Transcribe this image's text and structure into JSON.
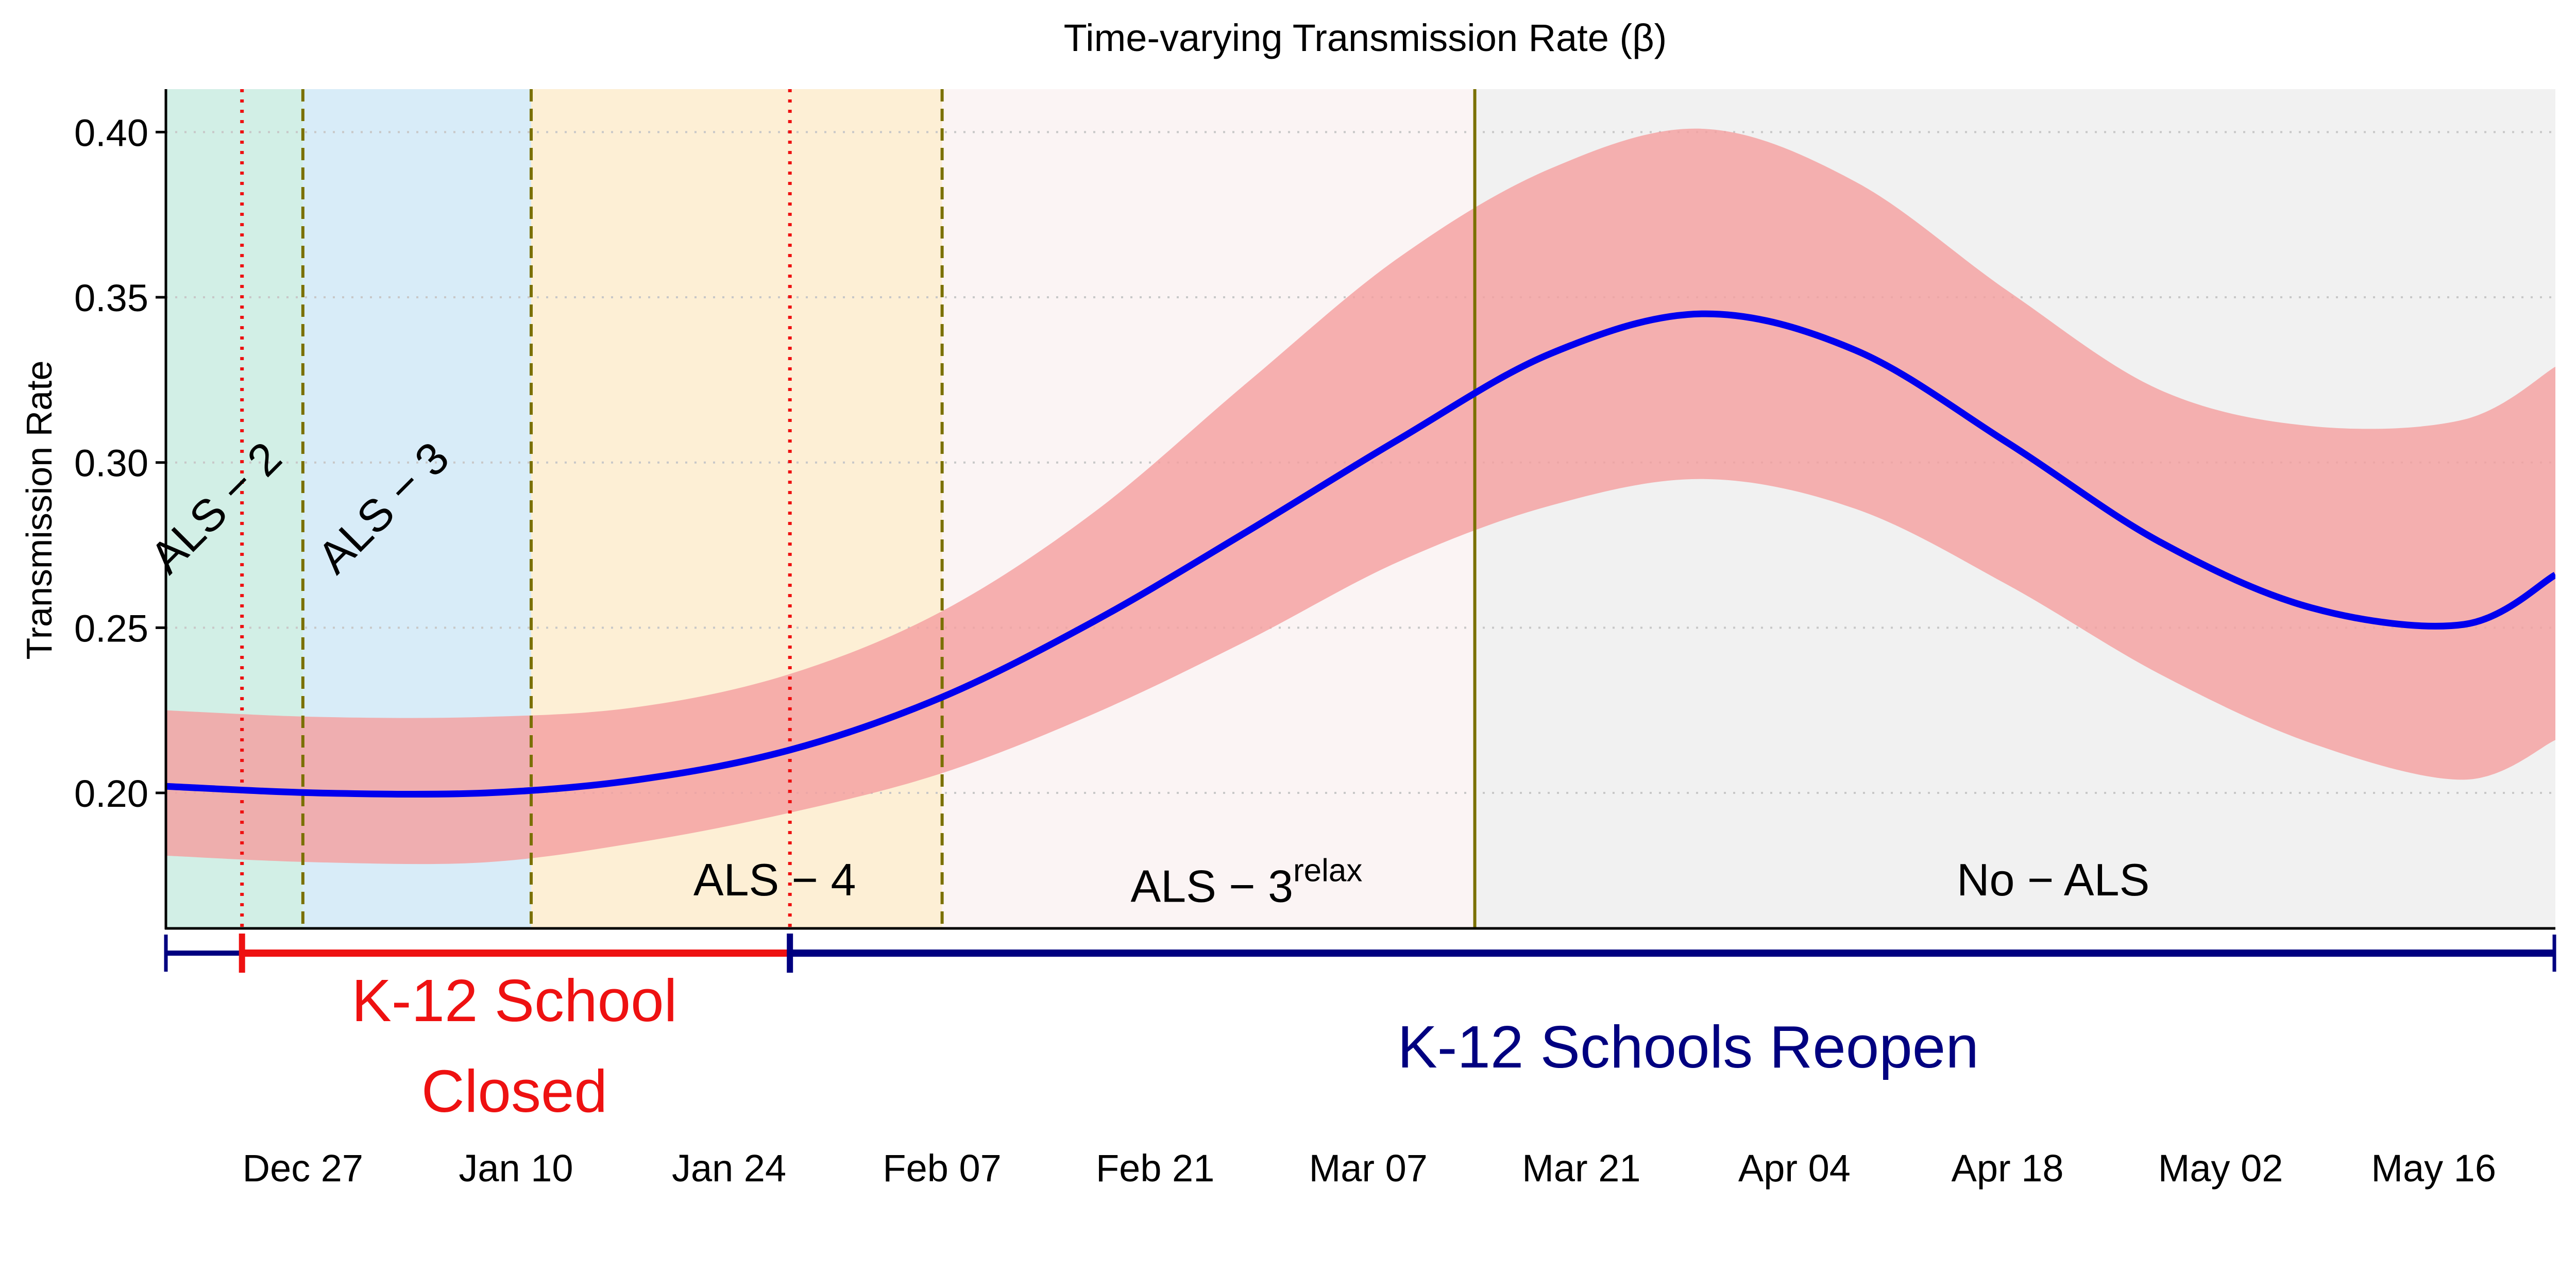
{
  "chart_data": {
    "type": "line",
    "title": "Time-varying Transmission Rate (β)",
    "ylabel": "Transmission Rate",
    "xlabel": "",
    "x_axis_type": "date",
    "xlim": [
      "2020-12-18",
      "2021-05-24"
    ],
    "ylim": [
      0.159,
      0.413
    ],
    "yticks": [
      0.2,
      0.25,
      0.3,
      0.35,
      0.4
    ],
    "ytick_labels": [
      "0.20",
      "0.25",
      "0.30",
      "0.35",
      "0.40"
    ],
    "xticks": [
      "2020-12-27",
      "2021-01-10",
      "2021-01-24",
      "2021-02-07",
      "2021-02-21",
      "2021-03-07",
      "2021-03-21",
      "2021-04-04",
      "2021-04-18",
      "2021-05-02",
      "2021-05-16"
    ],
    "xtick_labels": [
      "Dec 27",
      "Jan 10",
      "Jan 24",
      "Feb 07",
      "Feb 21",
      "Mar 07",
      "Mar 21",
      "Apr 04",
      "Apr 18",
      "May 02",
      "May 16"
    ],
    "grid": "horizontal-dotted",
    "series": [
      {
        "color": "#0000ee",
        "x": [
          "2020-12-18",
          "2020-12-28",
          "2021-01-08",
          "2021-01-18",
          "2021-01-28",
          "2021-02-07",
          "2021-02-17",
          "2021-02-27",
          "2021-03-09",
          "2021-03-19",
          "2021-03-29",
          "2021-04-08",
          "2021-04-18",
          "2021-04-28",
          "2021-05-08",
          "2021-05-18",
          "2021-05-24"
        ],
        "y": [
          0.202,
          0.2,
          0.2,
          0.204,
          0.213,
          0.229,
          0.252,
          0.279,
          0.307,
          0.333,
          0.345,
          0.334,
          0.306,
          0.276,
          0.256,
          0.251,
          0.266
        ],
        "lower": [
          0.181,
          0.179,
          0.179,
          0.185,
          0.194,
          0.206,
          0.224,
          0.246,
          0.27,
          0.287,
          0.295,
          0.286,
          0.263,
          0.236,
          0.215,
          0.204,
          0.216
        ],
        "upper": [
          0.225,
          0.223,
          0.223,
          0.226,
          0.236,
          0.255,
          0.285,
          0.324,
          0.362,
          0.389,
          0.401,
          0.385,
          0.352,
          0.322,
          0.311,
          0.313,
          0.329
        ]
      }
    ],
    "band_color": "#f4a0a0",
    "phases": [
      {
        "label_main": "ALS − 2",
        "label_sup": "",
        "start": "2020-12-18",
        "end": "2020-12-27",
        "color": "#d2efe6",
        "label_rotated": true,
        "label_x": "2020-12-22",
        "label_y": 0.283
      },
      {
        "label_main": "ALS − 3",
        "label_sup": "",
        "start": "2020-12-27",
        "end": "2021-01-11",
        "color": "#d8ecf8",
        "label_rotated": true,
        "label_x": "2021-01-02",
        "label_y": 0.283
      },
      {
        "label_main": "ALS − 4",
        "label_sup": "",
        "start": "2021-01-11",
        "end": "2021-02-07",
        "color": "#fdefd5",
        "label_rotated": false,
        "label_x": "2021-01-27",
        "label_y": 0.169
      },
      {
        "label_main": "ALS − 3",
        "label_sup": "relax",
        "start": "2021-02-07",
        "end": "2021-03-14",
        "color": "#fbf4f4",
        "label_rotated": false,
        "label_x": "2021-02-27",
        "label_y": 0.167
      },
      {
        "label_main": "No − ALS",
        "label_sup": "",
        "start": "2021-03-14",
        "end": "2021-05-24",
        "color": "#f1f1f1",
        "label_rotated": false,
        "label_x": "2021-04-21",
        "label_y": 0.169
      }
    ],
    "vlines": [
      {
        "date": "2020-12-23",
        "style": "dotted",
        "color": "#ee1111"
      },
      {
        "date": "2020-12-27",
        "style": "dashed",
        "color": "#7a7000"
      },
      {
        "date": "2021-01-11",
        "style": "dashed",
        "color": "#7a7000"
      },
      {
        "date": "2021-01-28",
        "style": "dotted",
        "color": "#ee1111"
      },
      {
        "date": "2021-02-07",
        "style": "dashed",
        "color": "#7a7000"
      },
      {
        "date": "2021-03-14",
        "style": "solid",
        "color": "#7a7000"
      }
    ],
    "school_periods": [
      {
        "label_lines": [
          "K-12 School",
          "Closed"
        ],
        "start": "2020-12-23",
        "end": "2021-01-28",
        "color": "#ee1111"
      },
      {
        "label_lines": [
          "K-12 Schools Reopen"
        ],
        "start": "2021-01-28",
        "end": "2021-05-24",
        "color": "#000080"
      }
    ],
    "school_bar_start": "2020-12-18"
  }
}
